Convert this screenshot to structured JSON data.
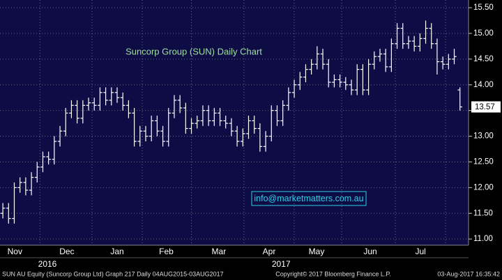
{
  "chart_data": {
    "type": "ohlc",
    "annotation": "Suncorp Group (SUN) Daily Chart",
    "contact": "info@marketmatters.com.au",
    "footer_left": "SUN AU Equity (Suncorp Group Ltd) Graph 217  Daily 04AUG2015-03AUG2017",
    "footer_center": "Copyright© 2017 Bloomberg Finance L.P.",
    "footer_right": "03-Aug-2017 16:35:42",
    "color": "#ffffff",
    "grid": true,
    "last_price": 13.57,
    "xlim": [
      0,
      82
    ],
    "xticks": [
      {
        "value": 2.6,
        "label": "Nov"
      },
      {
        "value": 11.7,
        "label": "Dec"
      },
      {
        "value": 20.5,
        "label": "Jan"
      },
      {
        "value": 29.1,
        "label": "Feb"
      },
      {
        "value": 38.3,
        "label": "Mar"
      },
      {
        "value": 47.1,
        "label": "Apr"
      },
      {
        "value": 55.4,
        "label": "May"
      },
      {
        "value": 64.8,
        "label": "Jun"
      },
      {
        "value": 73.6,
        "label": "Jul"
      }
    ],
    "year_ticks": [
      {
        "value": 8.3,
        "label": "2016"
      },
      {
        "value": 49.2,
        "label": "2017"
      }
    ],
    "ylim": [
      10.88,
      15.65
    ],
    "yticks": [
      {
        "value": 11,
        "label": "11.00"
      },
      {
        "value": 11.5,
        "label": "11.50"
      },
      {
        "value": 12,
        "label": "12.00"
      },
      {
        "value": 12.5,
        "label": "12.50"
      },
      {
        "value": 13,
        "label": "13.00"
      },
      {
        "value": 13.5,
        "label": "13.50"
      },
      {
        "value": 14,
        "label": "14.00"
      },
      {
        "value": 14.5,
        "label": "14.50"
      },
      {
        "value": 15,
        "label": "15.00"
      },
      {
        "value": 15.5,
        "label": "15.50"
      }
    ],
    "open": [
      11.5,
      11.6,
      11.4,
      12.0,
      12.1,
      11.95,
      12.2,
      12.4,
      12.6,
      12.55,
      12.9,
      13.1,
      13.45,
      13.6,
      13.35,
      13.6,
      13.65,
      13.6,
      13.85,
      13.7,
      13.85,
      13.75,
      13.6,
      13.45,
      12.9,
      13.1,
      13.0,
      13.3,
      13.1,
      12.9,
      13.45,
      13.7,
      13.55,
      13.15,
      13.25,
      13.3,
      13.5,
      13.3,
      13.45,
      13.3,
      13.25,
      13.1,
      12.9,
      13.05,
      13.3,
      13.15,
      12.8,
      13.0,
      13.5,
      13.3,
      13.6,
      13.85,
      14.0,
      14.15,
      14.3,
      14.4,
      14.6,
      14.4,
      14.05,
      14.1,
      14.05,
      14.0,
      13.9,
      14.3,
      13.9,
      14.4,
      14.55,
      14.6,
      14.35,
      14.8,
      15.1,
      14.8,
      14.85,
      14.75,
      14.9,
      15.1,
      14.8,
      14.45,
      14.4,
      14.5,
      13.9
    ],
    "high": [
      11.7,
      11.7,
      12.1,
      12.2,
      12.2,
      12.3,
      12.5,
      12.7,
      12.7,
      13.0,
      13.2,
      13.55,
      13.7,
      13.7,
      13.7,
      13.75,
      13.75,
      13.95,
      13.95,
      13.95,
      13.95,
      13.85,
      13.7,
      13.55,
      13.2,
      13.2,
      13.4,
      13.4,
      13.2,
      13.55,
      13.8,
      13.8,
      13.65,
      13.35,
      13.4,
      13.6,
      13.6,
      13.55,
      13.55,
      13.4,
      13.35,
      13.2,
      13.15,
      13.4,
      13.4,
      13.25,
      13.1,
      13.6,
      13.6,
      13.7,
      13.95,
      14.1,
      14.25,
      14.4,
      14.5,
      14.75,
      14.7,
      14.5,
      14.2,
      14.2,
      14.15,
      14.1,
      14.4,
      14.4,
      14.5,
      14.65,
      14.7,
      14.7,
      14.9,
      15.2,
      15.2,
      14.95,
      14.95,
      15.0,
      15.25,
      15.2,
      14.9,
      14.55,
      14.6,
      14.7,
      13.95
    ],
    "low": [
      11.4,
      11.3,
      11.3,
      11.9,
      11.85,
      11.85,
      12.1,
      12.3,
      12.45,
      12.45,
      12.8,
      13.0,
      13.35,
      13.25,
      13.25,
      13.5,
      13.5,
      13.5,
      13.6,
      13.6,
      13.65,
      13.5,
      13.35,
      12.8,
      12.8,
      12.9,
      12.9,
      13.0,
      12.8,
      12.8,
      13.35,
      13.45,
      13.05,
      13.05,
      13.15,
      13.2,
      13.2,
      13.2,
      13.2,
      13.15,
      13.0,
      12.8,
      12.8,
      12.95,
      13.05,
      12.7,
      12.7,
      12.9,
      13.2,
      13.2,
      13.5,
      13.75,
      13.9,
      14.05,
      14.2,
      14.3,
      14.3,
      13.95,
      13.95,
      13.95,
      13.9,
      13.8,
      13.8,
      13.8,
      13.8,
      14.3,
      14.45,
      14.25,
      14.25,
      14.7,
      14.7,
      14.7,
      14.65,
      14.65,
      14.8,
      14.7,
      14.2,
      14.3,
      14.3,
      14.4,
      13.5
    ],
    "close": [
      11.6,
      11.4,
      12.0,
      12.1,
      11.95,
      12.2,
      12.4,
      12.6,
      12.55,
      12.9,
      13.1,
      13.45,
      13.6,
      13.35,
      13.6,
      13.65,
      13.6,
      13.85,
      13.7,
      13.85,
      13.75,
      13.6,
      13.45,
      12.9,
      13.1,
      13.0,
      13.3,
      13.1,
      12.9,
      13.45,
      13.7,
      13.55,
      13.15,
      13.25,
      13.3,
      13.5,
      13.3,
      13.45,
      13.3,
      13.25,
      13.1,
      12.9,
      13.05,
      13.3,
      13.15,
      12.8,
      13.0,
      13.5,
      13.3,
      13.6,
      13.85,
      14.0,
      14.15,
      14.3,
      14.4,
      14.6,
      14.4,
      14.05,
      14.1,
      14.05,
      14.0,
      13.9,
      14.3,
      13.9,
      14.4,
      14.55,
      14.6,
      14.35,
      14.8,
      15.1,
      14.8,
      14.85,
      14.75,
      14.9,
      15.1,
      14.8,
      14.45,
      14.4,
      14.5,
      14.55,
      13.57
    ]
  }
}
